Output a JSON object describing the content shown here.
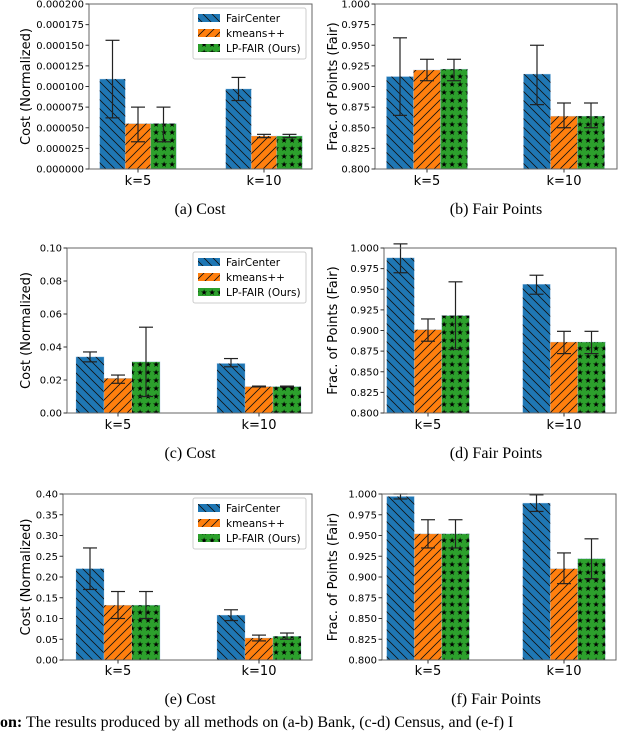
{
  "colors": {
    "FairCenter": "#1f77b4",
    "kmeans++": "#ff7f0e",
    "LP-FAIR (Ours)": "#2ca02c"
  },
  "footer": {
    "lead": "on:",
    "text": " The results produced by all methods on (a-b) Bank, (c-d) Census, and (e-f) I"
  },
  "chart_data": [
    {
      "id": "a",
      "type": "bar",
      "caption": "(a) Cost",
      "ylabel": "Cost (Normalized)",
      "categories": [
        "k=5",
        "k=10"
      ],
      "ylim": [
        0,
        0.0002
      ],
      "yticks": [
        "0.000000",
        "0.000025",
        "0.000050",
        "0.000075",
        "0.000100",
        "0.000125",
        "0.000150",
        "0.000175",
        "0.000200"
      ],
      "legend": "top-right",
      "series": [
        {
          "name": "FairCenter",
          "hatch": "backslash",
          "values": [
            0.000109,
            9.7e-05
          ],
          "err_low": [
            6.2e-05,
            8.3e-05
          ],
          "err_high": [
            0.000156,
            0.000111
          ]
        },
        {
          "name": "kmeans++",
          "hatch": "slash",
          "values": [
            5.5e-05,
            4e-05
          ],
          "err_low": [
            3.3e-05,
            3.8e-05
          ],
          "err_high": [
            7.5e-05,
            4.2e-05
          ]
        },
        {
          "name": "LP-FAIR (Ours)",
          "hatch": "stars",
          "values": [
            5.5e-05,
            4e-05
          ],
          "err_low": [
            3.3e-05,
            3.8e-05
          ],
          "err_high": [
            7.5e-05,
            4.2e-05
          ]
        }
      ]
    },
    {
      "id": "b",
      "type": "bar",
      "caption": "(b) Fair Points",
      "ylabel": "Frac. of Points (Fair)",
      "categories": [
        "k=5",
        "k=10"
      ],
      "ylim": [
        0.8,
        1.0
      ],
      "yticks": [
        "0.800",
        "0.825",
        "0.850",
        "0.875",
        "0.900",
        "0.925",
        "0.950",
        "0.975",
        "1.000"
      ],
      "series": [
        {
          "name": "FairCenter",
          "hatch": "backslash",
          "values": [
            0.912,
            0.915
          ],
          "err_low": [
            0.865,
            0.878
          ],
          "err_high": [
            0.959,
            0.95
          ]
        },
        {
          "name": "kmeans++",
          "hatch": "slash",
          "values": [
            0.92,
            0.864
          ],
          "err_low": [
            0.907,
            0.85
          ],
          "err_high": [
            0.933,
            0.88
          ]
        },
        {
          "name": "LP-FAIR (Ours)",
          "hatch": "stars",
          "values": [
            0.921,
            0.864
          ],
          "err_low": [
            0.907,
            0.85
          ],
          "err_high": [
            0.933,
            0.88
          ]
        }
      ]
    },
    {
      "id": "c",
      "type": "bar",
      "caption": "(c) Cost",
      "ylabel": "Cost (Normalized)",
      "categories": [
        "k=5",
        "k=10"
      ],
      "ylim": [
        0,
        0.1
      ],
      "yticks": [
        "0.00",
        "0.02",
        "0.04",
        "0.06",
        "0.08",
        "0.10"
      ],
      "legend": "top-right",
      "series": [
        {
          "name": "FairCenter",
          "hatch": "backslash",
          "values": [
            0.034,
            0.03
          ],
          "err_low": [
            0.031,
            0.028
          ],
          "err_high": [
            0.037,
            0.033
          ]
        },
        {
          "name": "kmeans++",
          "hatch": "slash",
          "values": [
            0.021,
            0.016
          ],
          "err_low": [
            0.018,
            0.0158
          ],
          "err_high": [
            0.023,
            0.0163
          ]
        },
        {
          "name": "LP-FAIR (Ours)",
          "hatch": "stars",
          "values": [
            0.031,
            0.016
          ],
          "err_low": [
            0.01,
            0.0158
          ],
          "err_high": [
            0.052,
            0.0163
          ]
        }
      ]
    },
    {
      "id": "d",
      "type": "bar",
      "caption": "(d) Fair Points",
      "ylabel": "Frac. of Points (Fair)",
      "categories": [
        "k=5",
        "k=10"
      ],
      "ylim": [
        0.8,
        1.0
      ],
      "yticks": [
        "0.800",
        "0.825",
        "0.850",
        "0.875",
        "0.900",
        "0.925",
        "0.950",
        "0.975",
        "1.000"
      ],
      "series": [
        {
          "name": "FairCenter",
          "hatch": "backslash",
          "values": [
            0.988,
            0.956
          ],
          "err_low": [
            0.97,
            0.944
          ],
          "err_high": [
            1.005,
            0.967
          ]
        },
        {
          "name": "kmeans++",
          "hatch": "slash",
          "values": [
            0.901,
            0.886
          ],
          "err_low": [
            0.887,
            0.872
          ],
          "err_high": [
            0.914,
            0.899
          ]
        },
        {
          "name": "LP-FAIR (Ours)",
          "hatch": "stars",
          "values": [
            0.918,
            0.886
          ],
          "err_low": [
            0.877,
            0.872
          ],
          "err_high": [
            0.959,
            0.899
          ]
        }
      ]
    },
    {
      "id": "e",
      "type": "bar",
      "caption": "(e) Cost",
      "ylabel": "Cost (Normalized)",
      "categories": [
        "k=5",
        "k=10"
      ],
      "ylim": [
        0,
        0.4
      ],
      "yticks": [
        "0.00",
        "0.05",
        "0.10",
        "0.15",
        "0.20",
        "0.25",
        "0.30",
        "0.35",
        "0.40"
      ],
      "legend": "top-right",
      "series": [
        {
          "name": "FairCenter",
          "hatch": "backslash",
          "values": [
            0.22,
            0.108
          ],
          "err_low": [
            0.17,
            0.095
          ],
          "err_high": [
            0.27,
            0.121
          ]
        },
        {
          "name": "kmeans++",
          "hatch": "slash",
          "values": [
            0.132,
            0.053
          ],
          "err_low": [
            0.1,
            0.046
          ],
          "err_high": [
            0.165,
            0.06
          ]
        },
        {
          "name": "LP-FAIR (Ours)",
          "hatch": "stars",
          "values": [
            0.132,
            0.057
          ],
          "err_low": [
            0.1,
            0.05
          ],
          "err_high": [
            0.165,
            0.065
          ]
        }
      ]
    },
    {
      "id": "f",
      "type": "bar",
      "caption": "(f) Fair Points",
      "ylabel": "Frac. of Points (Fair)",
      "categories": [
        "k=5",
        "k=10"
      ],
      "ylim": [
        0.8,
        1.0
      ],
      "yticks": [
        "0.800",
        "0.825",
        "0.850",
        "0.875",
        "0.900",
        "0.925",
        "0.950",
        "0.975",
        "1.000"
      ],
      "series": [
        {
          "name": "FairCenter",
          "hatch": "backslash",
          "values": [
            0.997,
            0.989
          ],
          "err_low": [
            0.994,
            0.979
          ],
          "err_high": [
            1.0,
            0.999
          ]
        },
        {
          "name": "kmeans++",
          "hatch": "slash",
          "values": [
            0.952,
            0.91
          ],
          "err_low": [
            0.935,
            0.892
          ],
          "err_high": [
            0.969,
            0.929
          ]
        },
        {
          "name": "LP-FAIR (Ours)",
          "hatch": "stars",
          "values": [
            0.952,
            0.922
          ],
          "err_low": [
            0.935,
            0.898
          ],
          "err_high": [
            0.969,
            0.946
          ]
        }
      ]
    }
  ]
}
